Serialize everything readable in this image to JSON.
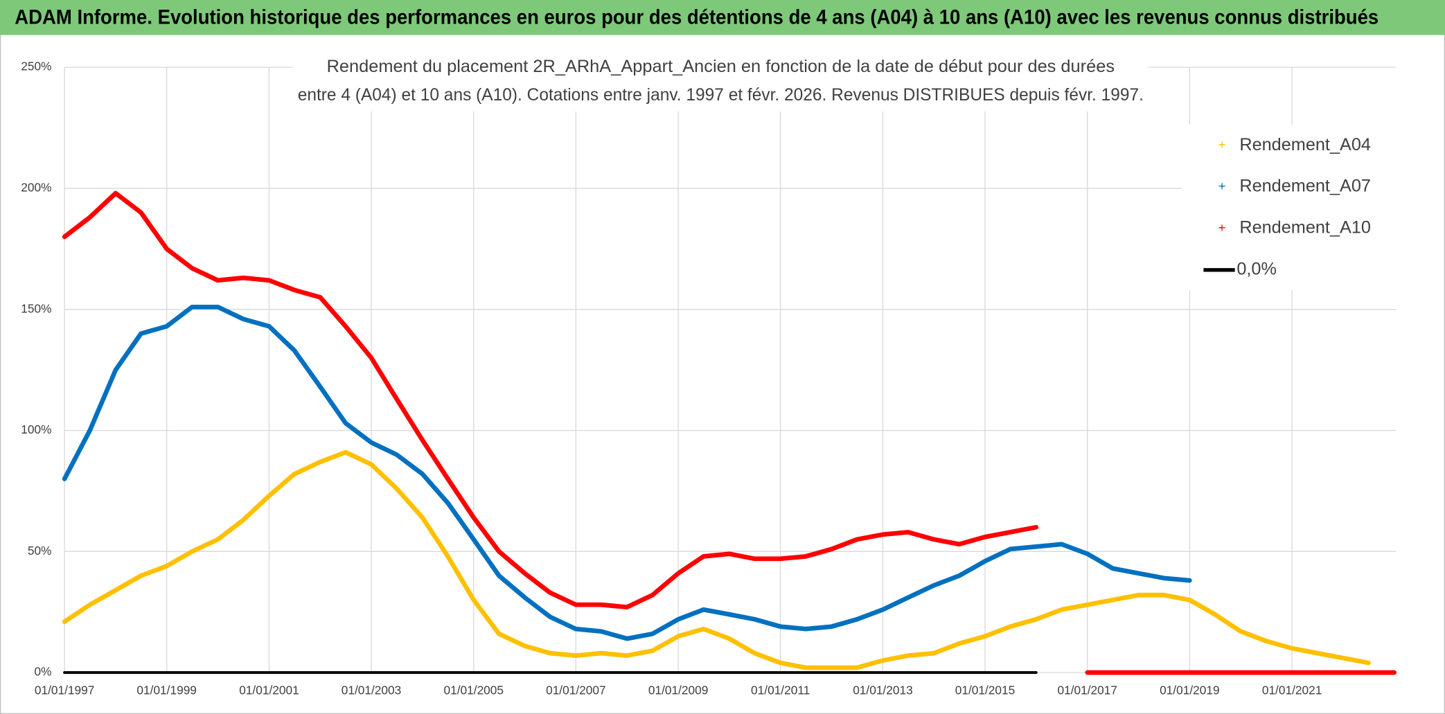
{
  "header": {
    "title": "ADAM Informe. Evolution historique des performances en euros pour des détentions de 4 ans (A04) à 10 ans (A10) avec les revenus connus distribués"
  },
  "chart_data": {
    "type": "line",
    "title_lines": [
      "Rendement du placement 2R_ARhA_Appart_Ancien en fonction de la date de début pour des durées",
      "entre 4 (A04) et 10 ans (A10). Cotations entre janv. 1997 et févr. 2026. Revenus DISTRIBUES depuis févr. 1997."
    ],
    "x": [
      "1997-01-01",
      "1997-07-01",
      "1998-01-01",
      "1998-07-01",
      "1999-01-01",
      "1999-07-01",
      "2000-01-01",
      "2000-07-01",
      "2001-01-01",
      "2001-07-01",
      "2002-01-01",
      "2002-07-01",
      "2003-01-01",
      "2003-07-01",
      "2004-01-01",
      "2004-07-01",
      "2005-01-01",
      "2005-07-01",
      "2006-01-01",
      "2006-07-01",
      "2007-01-01",
      "2007-07-01",
      "2008-01-01",
      "2008-07-01",
      "2009-01-01",
      "2009-07-01",
      "2010-01-01",
      "2010-07-01",
      "2011-01-01",
      "2011-07-01",
      "2012-01-01",
      "2012-07-01",
      "2013-01-01",
      "2013-07-01",
      "2014-01-01",
      "2014-07-01",
      "2015-01-01",
      "2015-07-01",
      "2016-01-01",
      "2016-07-01",
      "2017-01-01",
      "2017-07-01",
      "2018-01-01",
      "2018-07-01",
      "2019-01-01",
      "2019-07-01",
      "2020-01-01",
      "2020-07-01",
      "2021-01-01",
      "2021-07-01",
      "2022-01-01",
      "2022-07-01",
      "2023-01-01"
    ],
    "series": [
      {
        "name": "Rendement_A04",
        "color": "#ffc000",
        "style": "marker",
        "values": [
          21,
          28,
          34,
          40,
          44,
          50,
          55,
          63,
          73,
          82,
          87,
          91,
          86,
          76,
          64,
          48,
          30,
          16,
          11,
          8,
          7,
          8,
          7,
          9,
          15,
          18,
          14,
          8,
          4,
          2,
          2,
          2,
          5,
          7,
          8,
          12,
          15,
          19,
          22,
          26,
          28,
          30,
          32,
          32,
          30,
          24,
          17,
          13,
          10,
          8,
          6,
          4,
          null
        ]
      },
      {
        "name": "Rendement_A07",
        "color": "#0070c0",
        "style": "marker",
        "values": [
          80,
          100,
          125,
          140,
          143,
          151,
          151,
          146,
          143,
          133,
          118,
          103,
          95,
          90,
          82,
          70,
          55,
          40,
          31,
          23,
          18,
          17,
          14,
          16,
          22,
          26,
          24,
          22,
          19,
          18,
          19,
          22,
          26,
          31,
          36,
          40,
          46,
          51,
          52,
          53,
          49,
          43,
          41,
          39,
          38,
          null,
          null,
          null,
          null,
          null,
          null,
          null,
          null
        ]
      },
      {
        "name": "Rendement_A10",
        "color": "#ff0000",
        "style": "marker",
        "values": [
          180,
          188,
          198,
          190,
          175,
          167,
          162,
          163,
          162,
          158,
          155,
          143,
          130,
          113,
          96,
          80,
          64,
          50,
          41,
          33,
          28,
          28,
          27,
          32,
          41,
          48,
          49,
          47,
          47,
          48,
          51,
          55,
          57,
          58,
          55,
          53,
          56,
          58,
          60,
          null,
          0,
          0,
          0,
          0,
          0,
          0,
          0,
          0,
          0,
          0,
          0,
          0,
          0
        ]
      },
      {
        "name": "0,0%",
        "color": "#000000",
        "style": "line",
        "values": [
          0,
          0,
          0,
          0,
          0,
          0,
          0,
          0,
          0,
          0,
          0,
          0,
          0,
          0,
          0,
          0,
          0,
          0,
          0,
          0,
          0,
          0,
          0,
          0,
          0,
          0,
          0,
          0,
          0,
          0,
          0,
          0,
          0,
          0,
          0,
          0,
          0,
          0,
          0,
          null,
          null,
          null,
          null,
          null,
          null,
          null,
          null,
          null,
          null,
          null,
          null,
          null,
          null
        ]
      }
    ],
    "xlim": [
      "1997-01-01",
      "2023-01-15"
    ],
    "xticks": [
      {
        "value": "1997-01-01",
        "label": "01/01/1997"
      },
      {
        "value": "1999-01-01",
        "label": "01/01/1999"
      },
      {
        "value": "2001-01-01",
        "label": "01/01/2001"
      },
      {
        "value": "2003-01-01",
        "label": "01/01/2003"
      },
      {
        "value": "2005-01-01",
        "label": "01/01/2005"
      },
      {
        "value": "2007-01-01",
        "label": "01/01/2007"
      },
      {
        "value": "2009-01-01",
        "label": "01/01/2009"
      },
      {
        "value": "2011-01-01",
        "label": "01/01/2011"
      },
      {
        "value": "2013-01-01",
        "label": "01/01/2013"
      },
      {
        "value": "2015-01-01",
        "label": "01/01/2015"
      },
      {
        "value": "2017-01-01",
        "label": "01/01/2017"
      },
      {
        "value": "2019-01-01",
        "label": "01/01/2019"
      },
      {
        "value": "2021-01-01",
        "label": "01/01/2021"
      }
    ],
    "ylim": [
      0,
      250
    ],
    "yticks": [
      {
        "value": 0,
        "label": "0%"
      },
      {
        "value": 50,
        "label": "50%"
      },
      {
        "value": 100,
        "label": "100%"
      },
      {
        "value": 150,
        "label": "150%"
      },
      {
        "value": 200,
        "label": "200%"
      },
      {
        "value": 250,
        "label": "250%"
      }
    ],
    "grid": true,
    "legend": "upper-right"
  }
}
